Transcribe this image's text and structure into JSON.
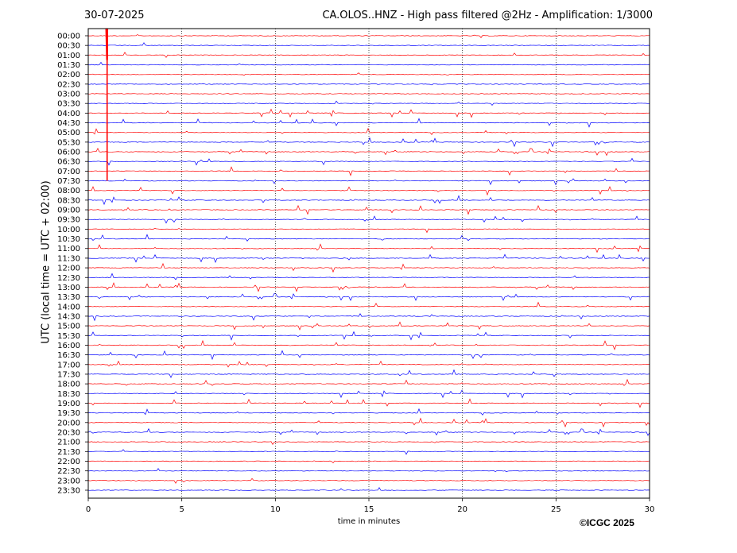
{
  "header": {
    "date": "30-07-2025",
    "title": "CA.OLOS..HNZ - High pass filtered @2Hz - Amplification: 1/3000"
  },
  "footer": {
    "copyright": "©ICGC 2025"
  },
  "chart_data": {
    "type": "line",
    "title": "CA.OLOS..HNZ - High pass filtered @2Hz - Amplification: 1/3000",
    "xlabel": "time in minutes",
    "ylabel": "UTC (local time = UTC + 02:00)",
    "xlim": [
      0,
      30
    ],
    "xticks": [
      0,
      5,
      10,
      15,
      20,
      25,
      30
    ],
    "grid": "vertical dotted at x ticks",
    "rows": [
      "00:00",
      "00:30",
      "01:00",
      "01:30",
      "02:00",
      "02:30",
      "03:00",
      "03:30",
      "04:00",
      "04:30",
      "05:00",
      "05:30",
      "06:00",
      "06:30",
      "07:00",
      "07:30",
      "08:00",
      "08:30",
      "09:00",
      "09:30",
      "10:00",
      "10:30",
      "11:00",
      "11:30",
      "12:00",
      "12:30",
      "13:00",
      "13:30",
      "14:00",
      "14:30",
      "15:00",
      "15:30",
      "16:00",
      "16:30",
      "17:00",
      "17:30",
      "18:00",
      "18:30",
      "19:00",
      "19:30",
      "20:00",
      "20:30",
      "21:00",
      "21:30",
      "22:00",
      "22:30",
      "23:00",
      "23:30"
    ],
    "colors": [
      "#ff0000",
      "#0000ff"
    ],
    "large_event": {
      "row": "00:00",
      "minute": 1.0,
      "through_row": "07:30"
    }
  }
}
